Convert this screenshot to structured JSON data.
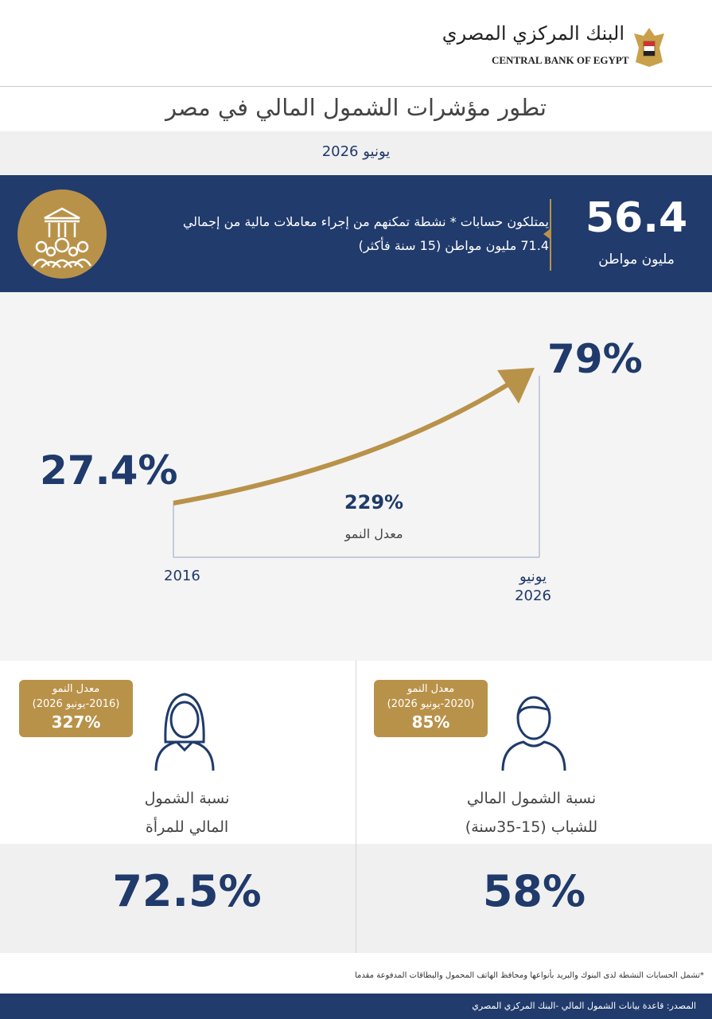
{
  "header": {
    "logo_ar": "البنك المركزي المصري",
    "logo_en": "CENTRAL BANK OF EGYPT"
  },
  "title": "تطور مؤشرات  الشمول المالي في مصر",
  "date": "يونيو 2026",
  "banner": {
    "value": "56.4",
    "unit": "مليون مواطن",
    "lines": [
      "يمتلكون حسابات * نشطة تمكنهم من إجراء معاملات مالية من إجمالي",
      "71.4 مليون مواطن (15 سنة فأكثر)"
    ]
  },
  "growth": {
    "start_value": "27.4%",
    "end_value": "79%",
    "rate": "229%",
    "rate_label": "معدل النمو",
    "start_label": "2016",
    "end_label": [
      "يونيو",
      "2026"
    ]
  },
  "women": {
    "badge": [
      "معدل النمو",
      "(2016-يونيو 2026)",
      "327%"
    ],
    "label": [
      "نسبة الشمول",
      "المالي للمرأة"
    ],
    "value": "72.5%"
  },
  "youth": {
    "badge": [
      "معدل النمو",
      "(2020-يونيو 2026)",
      "85%"
    ],
    "label": [
      "نسبة الشمول المالي",
      "للشباب (15-35سنة)"
    ],
    "value": "58%"
  },
  "footnote": "*تشمل الحسابات النشطة لدى  البنوك والبريد بأنواعها ومحافظ الهاتف المحمول والبطاقات المدفوعة مقدما",
  "source": "المصدر: قاعدة بيانات الشمول المالي -البنك المركزي المصري"
}
